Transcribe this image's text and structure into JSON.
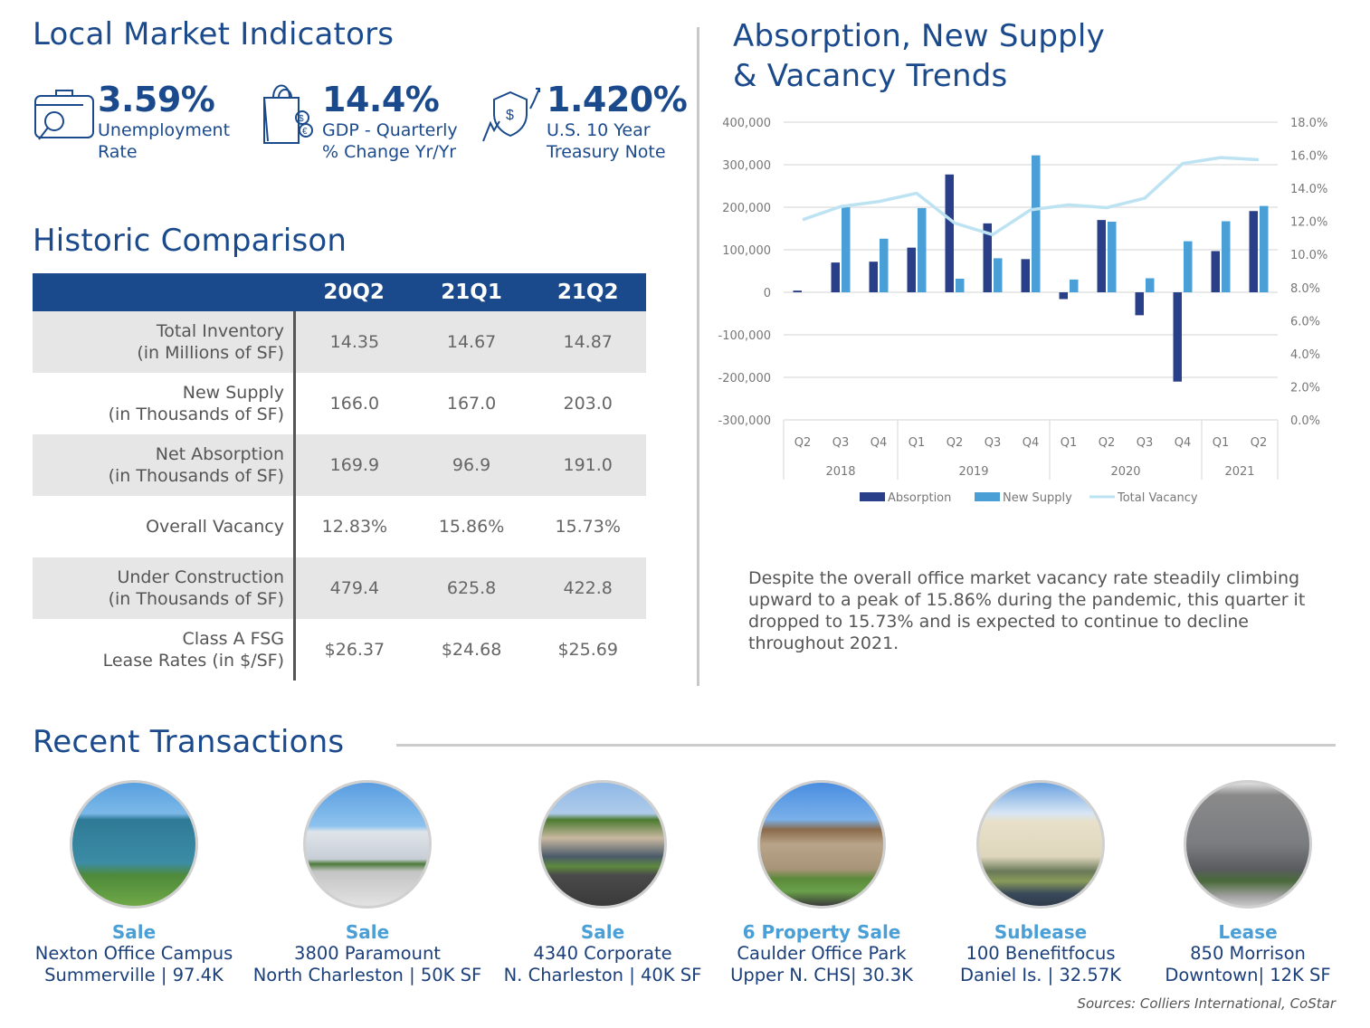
{
  "sections": {
    "local_market_indicators": "Local Market Indicators",
    "historic_comparison": "Historic Comparison",
    "absorption_title_line1": "Absorption, New Supply",
    "absorption_title_line2": "& Vacancy Trends",
    "recent_transactions": "Recent Transactions"
  },
  "indicators": [
    {
      "icon": "briefcase-search-icon",
      "value": "3.59%",
      "label_line1": "Unemployment",
      "label_line2": "Rate"
    },
    {
      "icon": "shopping-bag-currency-icon",
      "value": "14.4%",
      "label_line1": "GDP - Quarterly",
      "label_line2": "% Change Yr/Yr"
    },
    {
      "icon": "shield-dollar-trend-icon",
      "value": "1.420%",
      "label_line1": "U.S. 10 Year",
      "label_line2": "Treasury Note"
    }
  ],
  "historic": {
    "columns": [
      "20Q2",
      "21Q1",
      "21Q2"
    ],
    "rows": [
      {
        "label1": "Total Inventory",
        "label2": "(in Millions of SF)",
        "values": [
          "14.35",
          "14.67",
          "14.87"
        ]
      },
      {
        "label1": "New Supply",
        "label2": "(in Thousands of SF)",
        "values": [
          "166.0",
          "167.0",
          "203.0"
        ]
      },
      {
        "label1": "Net Absorption",
        "label2": "(in Thousands of SF)",
        "values": [
          "169.9",
          "96.9",
          "191.0"
        ]
      },
      {
        "label1": "Overall Vacancy",
        "label2": "",
        "values": [
          "12.83%",
          "15.86%",
          "15.73%"
        ]
      },
      {
        "label1": "Under Construction",
        "label2": "(in Thousands of SF)",
        "values": [
          "479.4",
          "625.8",
          "422.8"
        ]
      },
      {
        "label1": "Class A FSG",
        "label2": "Lease Rates (in $/SF)",
        "values": [
          "$26.37",
          "$24.68",
          "$25.69"
        ]
      }
    ]
  },
  "chart_data": {
    "type": "bar",
    "title": "Absorption, New Supply & Vacancy Trends",
    "categories": [
      "Q2",
      "Q3",
      "Q4",
      "Q1",
      "Q2",
      "Q3",
      "Q4",
      "Q1",
      "Q2",
      "Q3",
      "Q4",
      "Q1",
      "Q2"
    ],
    "year_groups": [
      {
        "label": "2018",
        "count": 3
      },
      {
        "label": "2019",
        "count": 4
      },
      {
        "label": "2020",
        "count": 4
      },
      {
        "label": "2021",
        "count": 2
      }
    ],
    "series": [
      {
        "name": "Absorption",
        "type": "bar",
        "axis": "left",
        "color": "#2a3f8a",
        "values": [
          4000,
          70000,
          72000,
          105000,
          277000,
          162000,
          78000,
          -16000,
          169900,
          -54000,
          -210000,
          96900,
          191000
        ]
      },
      {
        "name": "New Supply",
        "type": "bar",
        "axis": "left",
        "color": "#4a9fd6",
        "values": [
          0,
          200000,
          126000,
          198000,
          32000,
          80000,
          322000,
          30000,
          166000,
          33000,
          120000,
          167000,
          203000
        ]
      },
      {
        "name": "Total Vacancy",
        "type": "line",
        "axis": "right",
        "color": "#bde3f3",
        "values": [
          12.1,
          12.9,
          13.2,
          13.7,
          11.9,
          11.2,
          12.7,
          13.0,
          12.83,
          13.4,
          15.5,
          15.86,
          15.73
        ]
      }
    ],
    "y_left": {
      "min": -300000,
      "max": 400000,
      "step": 100000,
      "tick_labels": [
        "400,000",
        "300,000",
        "200,000",
        "100,000",
        "0",
        "-100,000",
        "-200,000",
        "-300,000"
      ]
    },
    "y_right": {
      "min": 0,
      "max": 18,
      "step": 2,
      "tick_labels": [
        "18.0%",
        "16.0%",
        "14.0%",
        "12.0%",
        "10.0%",
        "8.0%",
        "6.0%",
        "4.0%",
        "2.0%",
        "0.0%"
      ]
    },
    "grid": true,
    "legend": "bottom"
  },
  "commentary": "Despite the overall office market vacancy rate steadily climbing upward to a peak of 15.86% during the pandemic, this quarter it dropped to 15.73% and is expected to continue to decline throughout 2021.",
  "transactions": [
    {
      "type": "Sale",
      "line1": "Nexton Office Campus",
      "line2": "Summerville | 97.4K",
      "photo": "glass-office-building"
    },
    {
      "type": "Sale",
      "line1": "3800 Paramount",
      "line2": "North Charleston | 50K SF",
      "photo": "white-office-building"
    },
    {
      "type": "Sale",
      "line1": "4340 Corporate",
      "line2": "N. Charleston | 40K SF",
      "photo": "tan-office-building"
    },
    {
      "type": "6 Property Sale",
      "line1": "Caulder Office Park",
      "line2": "Upper N. CHS| 30.3K",
      "photo": "brick-office-building"
    },
    {
      "type": "Sublease",
      "line1": "100 Benefitfocus",
      "line2": "Daniel Is. | 32.57K",
      "photo": "two-story-office"
    },
    {
      "type": "Lease",
      "line1": "850 Morrison",
      "line2": "Downtown| 12K SF",
      "photo": "modern-tower"
    }
  ],
  "sources": "Sources: Colliers International, CoStar"
}
